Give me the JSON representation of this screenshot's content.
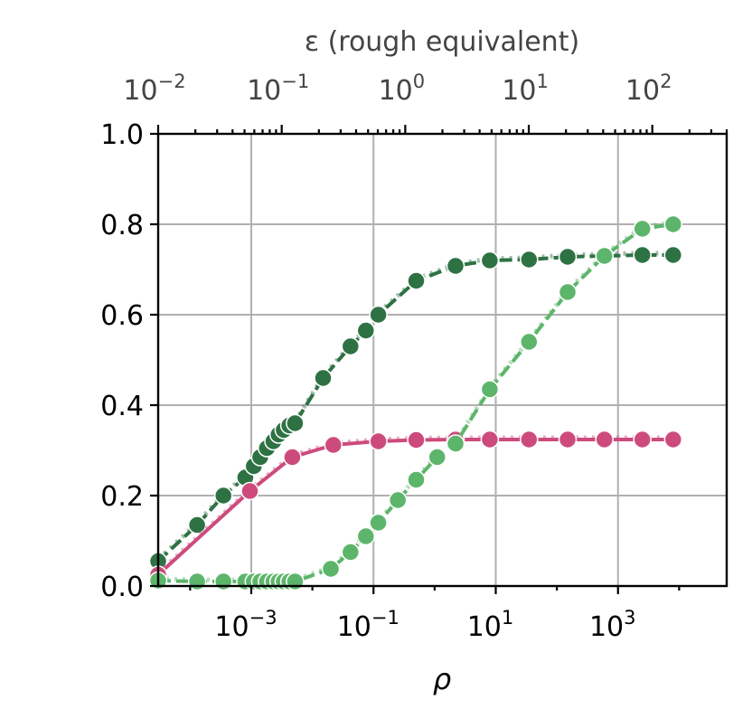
{
  "chart_data": {
    "type": "line",
    "xlabel": "ρ",
    "top_xlabel": "ε (rough equivalent)",
    "x_scale": "log",
    "xlim": [
      3e-05,
      60000
    ],
    "ylim": [
      0.0,
      1.0
    ],
    "y_ticks": [
      "0.0",
      "0.2",
      "0.4",
      "0.6",
      "0.8",
      "1.0"
    ],
    "x_ticks": [
      {
        "value": 0.001,
        "base": "10",
        "exp": "−3"
      },
      {
        "value": 0.1,
        "base": "10",
        "exp": "−1"
      },
      {
        "value": 10,
        "base": "10",
        "exp": "1"
      },
      {
        "value": 1000,
        "base": "10",
        "exp": "3"
      }
    ],
    "top_axis": {
      "scale": "log",
      "xlim": [
        0.01,
        400
      ],
      "ticks": [
        {
          "value": 0.01,
          "base": "10",
          "exp": "−2"
        },
        {
          "value": 0.1,
          "base": "10",
          "exp": "−1"
        },
        {
          "value": 1,
          "base": "10",
          "exp": "0"
        },
        {
          "value": 10,
          "base": "10",
          "exp": "1"
        },
        {
          "value": 100,
          "base": "10",
          "exp": "2"
        }
      ]
    },
    "grid": true,
    "series": [
      {
        "color": "#2e7244",
        "style": "dashed",
        "x": [
          3e-05,
          0.00013,
          0.00035,
          0.0008,
          0.0011,
          0.0014,
          0.0018,
          0.0023,
          0.0028,
          0.0034,
          0.0042,
          0.0052,
          0.015,
          0.042,
          0.075,
          0.12,
          0.5,
          2.2,
          8.0,
          35,
          150,
          600,
          2500,
          8000
        ],
        "y": [
          0.055,
          0.135,
          0.2,
          0.24,
          0.265,
          0.285,
          0.305,
          0.32,
          0.335,
          0.345,
          0.355,
          0.36,
          0.46,
          0.53,
          0.565,
          0.6,
          0.675,
          0.708,
          0.72,
          0.722,
          0.728,
          0.73,
          0.732,
          0.732
        ]
      },
      {
        "color": "#cd4b7c",
        "style": "solid",
        "x": [
          3e-05,
          0.00095,
          0.0047,
          0.022,
          0.12,
          0.5,
          2.2,
          8.0,
          35,
          150,
          600,
          2500,
          8000
        ],
        "y": [
          0.025,
          0.21,
          0.285,
          0.312,
          0.32,
          0.323,
          0.324,
          0.324,
          0.324,
          0.324,
          0.324,
          0.324,
          0.324
        ]
      },
      {
        "color": "#5db56b",
        "style": "dashed",
        "x": [
          3e-05,
          0.00013,
          0.00035,
          0.0008,
          0.0011,
          0.0014,
          0.0018,
          0.0023,
          0.0028,
          0.0034,
          0.0042,
          0.0052,
          0.02,
          0.042,
          0.075,
          0.12,
          0.25,
          0.5,
          1.1,
          2.2,
          8.0,
          35,
          150,
          600,
          2500,
          8000
        ],
        "y": [
          0.012,
          0.01,
          0.01,
          0.01,
          0.01,
          0.01,
          0.01,
          0.01,
          0.01,
          0.01,
          0.01,
          0.01,
          0.038,
          0.075,
          0.11,
          0.14,
          0.19,
          0.235,
          0.285,
          0.315,
          0.435,
          0.54,
          0.65,
          0.73,
          0.79,
          0.8
        ]
      }
    ]
  }
}
